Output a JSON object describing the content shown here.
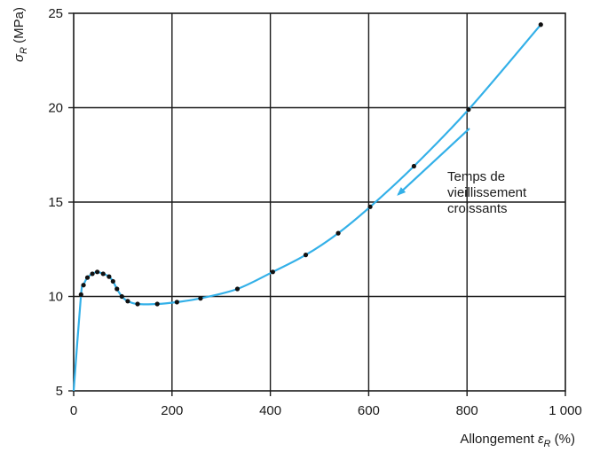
{
  "chart_data": {
    "type": "scatter",
    "xlabel": "Allongement",
    "xlabel_symbol": "ε",
    "xlabel_sub": "R",
    "xlabel_unit": "(%)",
    "ylabel_symbol": "σ",
    "ylabel_sub": "R",
    "ylabel_unit": "(MPa)",
    "xlim": [
      0,
      1000
    ],
    "ylim": [
      5,
      25
    ],
    "xticks": [
      0,
      200,
      400,
      600,
      800,
      1000
    ],
    "xtick_labels": [
      "0",
      "200",
      "400",
      "600",
      "800",
      "1 000"
    ],
    "yticks": [
      5,
      10,
      15,
      20,
      25
    ],
    "ytick_labels": [
      "5",
      "10",
      "15",
      "20",
      "25"
    ],
    "grid": true,
    "curve_color": "#33b0e8",
    "annotation": [
      "Temps de",
      "vieillissement",
      "croissants"
    ],
    "points": [
      {
        "x": 0,
        "y": 5.0
      },
      {
        "x": 15,
        "y": 10.1
      },
      {
        "x": 20,
        "y": 10.6
      },
      {
        "x": 28,
        "y": 11.0
      },
      {
        "x": 38,
        "y": 11.2
      },
      {
        "x": 48,
        "y": 11.3
      },
      {
        "x": 60,
        "y": 11.2
      },
      {
        "x": 72,
        "y": 11.05
      },
      {
        "x": 80,
        "y": 10.8
      },
      {
        "x": 88,
        "y": 10.4
      },
      {
        "x": 98,
        "y": 10.0
      },
      {
        "x": 110,
        "y": 9.75
      },
      {
        "x": 130,
        "y": 9.6
      },
      {
        "x": 170,
        "y": 9.6
      },
      {
        "x": 210,
        "y": 9.7
      },
      {
        "x": 258,
        "y": 9.9
      },
      {
        "x": 333,
        "y": 10.4
      },
      {
        "x": 405,
        "y": 11.3
      },
      {
        "x": 472,
        "y": 12.2
      },
      {
        "x": 538,
        "y": 13.35
      },
      {
        "x": 603,
        "y": 14.75
      },
      {
        "x": 692,
        "y": 16.9
      },
      {
        "x": 803,
        "y": 19.9
      },
      {
        "x": 950,
        "y": 24.4
      }
    ],
    "arrow": [
      {
        "x": 805,
        "y": 18.9
      },
      {
        "x": 660,
        "y": 15.4
      }
    ]
  }
}
